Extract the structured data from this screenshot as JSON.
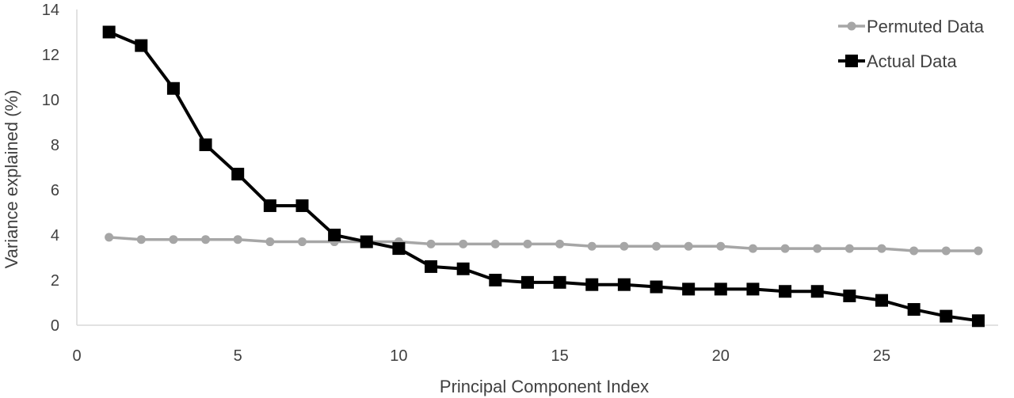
{
  "chart_data": {
    "type": "line",
    "title": "",
    "xlabel": "Principal Component Index",
    "ylabel": "Variance explained (%)",
    "xlim": [
      0,
      28
    ],
    "ylim": [
      0,
      14
    ],
    "x_ticks": [
      0,
      5,
      10,
      15,
      20,
      25
    ],
    "y_ticks": [
      0,
      2,
      4,
      6,
      8,
      10,
      12,
      14
    ],
    "grid": false,
    "legend_position": "top-right",
    "x": [
      1,
      2,
      3,
      4,
      5,
      6,
      7,
      8,
      9,
      10,
      11,
      12,
      13,
      14,
      15,
      16,
      17,
      18,
      19,
      20,
      21,
      22,
      23,
      24,
      25,
      26,
      27,
      28
    ],
    "series": [
      {
        "name": "Permuted Data",
        "color": "#a6a6a6",
        "marker": "circle",
        "values": [
          3.9,
          3.8,
          3.8,
          3.8,
          3.8,
          3.7,
          3.7,
          3.7,
          3.7,
          3.7,
          3.6,
          3.6,
          3.6,
          3.6,
          3.6,
          3.5,
          3.5,
          3.5,
          3.5,
          3.5,
          3.4,
          3.4,
          3.4,
          3.4,
          3.4,
          3.3,
          3.3,
          3.3
        ]
      },
      {
        "name": "Actual Data",
        "color": "#000000",
        "marker": "square",
        "values": [
          13.0,
          12.4,
          10.5,
          8.0,
          6.7,
          5.3,
          5.3,
          4.0,
          3.7,
          3.4,
          2.6,
          2.5,
          2.0,
          1.9,
          1.9,
          1.8,
          1.8,
          1.7,
          1.6,
          1.6,
          1.6,
          1.5,
          1.5,
          1.3,
          1.1,
          0.7,
          0.4,
          0.2
        ]
      }
    ]
  }
}
